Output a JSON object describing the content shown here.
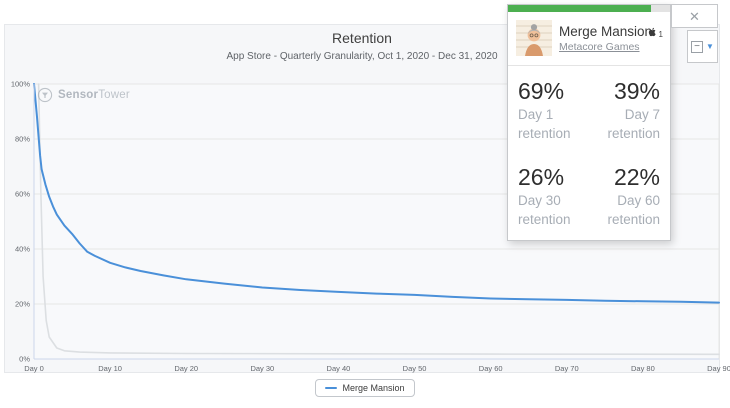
{
  "header": {
    "title": "Retention",
    "subtitle": "App Store - Quarterly Granularity, Oct 1, 2020 - Dec 31, 2020"
  },
  "watermark": {
    "bold_part": "Sensor",
    "light_part": "Tower"
  },
  "legend": {
    "items": [
      {
        "label": "Merge Mansion",
        "color": "#4a90d9"
      }
    ]
  },
  "card": {
    "app_name": "Merge Mansion",
    "publisher_link": "Metacore Games",
    "platform_count": "1",
    "progress": {
      "percent": 88,
      "color": "#4caf50"
    },
    "stats": [
      {
        "value": "69%",
        "label_line1": "Day 1",
        "label_line2": "retention"
      },
      {
        "value": "39%",
        "label_line1": "Day 7",
        "label_line2": "retention"
      },
      {
        "value": "26%",
        "label_line1": "Day 30",
        "label_line2": "retention"
      },
      {
        "value": "22%",
        "label_line1": "Day 60",
        "label_line2": "retention"
      }
    ],
    "controls": {
      "close_glyph": "✕",
      "minimize_glyph": "−",
      "expand_glyph": "▼"
    }
  },
  "chart_data": {
    "type": "line",
    "title": "Retention",
    "subtitle": "App Store - Quarterly Granularity, Oct 1, 2020 - Dec 31, 2020",
    "xlim": [
      0,
      90
    ],
    "ylim": [
      0,
      100
    ],
    "grid": true,
    "legend_position": "bottom",
    "axis_color": "#ccd6eb",
    "grid_color": "#e6e6e6",
    "plot_bg": "#f8f9fb",
    "tick_label_color": "#63676d",
    "xtick_values": [
      0,
      10,
      20,
      30,
      40,
      50,
      60,
      70,
      80,
      90
    ],
    "xtick_labels": [
      "Day 0",
      "Day 10",
      "Day 20",
      "Day 30",
      "Day 40",
      "Day 50",
      "Day 60",
      "Day 70",
      "Day 80",
      "Day 90"
    ],
    "ytick_values": [
      0,
      20,
      40,
      60,
      80,
      100
    ],
    "ytick_labels": [
      "0%",
      "20%",
      "40%",
      "60%",
      "80%",
      "100%"
    ],
    "key_points": {
      "day1": 69,
      "day7": 39,
      "day30": 26,
      "day60": 22
    },
    "series": [
      {
        "name": "unselected-app",
        "color": "#dcdfe2",
        "width": 1.6,
        "x": [
          0.6,
          0.9,
          1.2,
          1.6,
          2,
          3,
          4,
          6,
          10,
          20,
          40,
          60,
          90
        ],
        "y": [
          100,
          60,
          30,
          14,
          8,
          4,
          3,
          2.5,
          2.2,
          2,
          1.9,
          1.8,
          1.7
        ]
      },
      {
        "name": "Merge Mansion",
        "color": "#4a90d9",
        "width": 2,
        "x": [
          0,
          0.4,
          0.8,
          1,
          1.5,
          2,
          2.5,
          3,
          4,
          5,
          6,
          7,
          8,
          10,
          12,
          14,
          17,
          20,
          25,
          30,
          35,
          40,
          45,
          50,
          55,
          60,
          65,
          70,
          75,
          80,
          85,
          90
        ],
        "y": [
          100,
          88,
          74,
          69,
          63.5,
          59,
          55.5,
          52.5,
          48.5,
          45.5,
          42,
          39,
          37.5,
          35,
          33.3,
          32,
          30.4,
          29,
          27.4,
          26,
          25.1,
          24.4,
          23.8,
          23.3,
          22.6,
          22,
          21.7,
          21.5,
          21.2,
          21,
          20.8,
          20.5
        ]
      }
    ]
  }
}
